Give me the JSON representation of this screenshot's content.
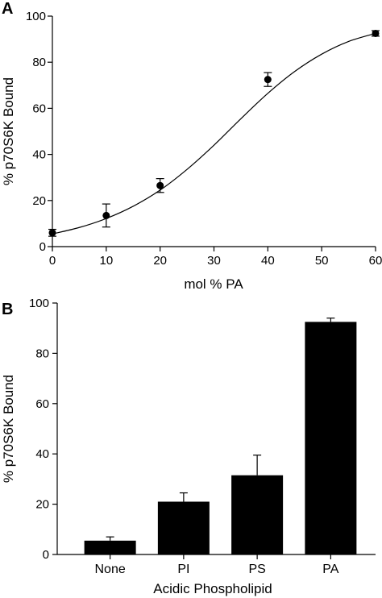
{
  "chart_data": [
    {
      "panel_label": "A",
      "type": "scatter",
      "xlabel": "mol % PA",
      "ylabel": "% p70S6K Bound",
      "xlim": [
        0,
        60
      ],
      "ylim": [
        0,
        100
      ],
      "xticks": [
        0,
        10,
        20,
        30,
        40,
        50,
        60
      ],
      "yticks": [
        0,
        20,
        40,
        60,
        80,
        100
      ],
      "tick_labels_x": [
        "0",
        "10",
        "20",
        "30",
        "40",
        "50",
        "60"
      ],
      "tick_labels_y": [
        "0",
        "20",
        "40",
        "60",
        "80",
        "100"
      ],
      "points": [
        {
          "x": 0,
          "y": 6,
          "err": 1.5
        },
        {
          "x": 10,
          "y": 13.5,
          "err": 5
        },
        {
          "x": 20,
          "y": 26.5,
          "err": 3
        },
        {
          "x": 40,
          "y": 72.5,
          "err": 3
        },
        {
          "x": 60,
          "y": 92.5,
          "err": 1.2
        }
      ],
      "fit_curve": [
        {
          "x": 0,
          "y": 5.5
        },
        {
          "x": 5,
          "y": 8.3
        },
        {
          "x": 10,
          "y": 12.2
        },
        {
          "x": 15,
          "y": 17.5
        },
        {
          "x": 20,
          "y": 24.5
        },
        {
          "x": 25,
          "y": 33.5
        },
        {
          "x": 30,
          "y": 44
        },
        {
          "x": 35,
          "y": 55.5
        },
        {
          "x": 40,
          "y": 66.5
        },
        {
          "x": 45,
          "y": 76
        },
        {
          "x": 50,
          "y": 83.5
        },
        {
          "x": 55,
          "y": 89
        },
        {
          "x": 60,
          "y": 92.5
        }
      ],
      "grid": false
    },
    {
      "panel_label": "B",
      "type": "bar",
      "xlabel": "Acidic Phospholipid",
      "ylabel": "% p70S6K Bound",
      "ylim": [
        0,
        100
      ],
      "yticks": [
        0,
        20,
        40,
        60,
        80,
        100
      ],
      "tick_labels_y": [
        "0",
        "20",
        "40",
        "60",
        "80",
        "100"
      ],
      "categories": [
        "None",
        "PI",
        "PS",
        "PA"
      ],
      "values": [
        5.5,
        21,
        31.5,
        92.5
      ],
      "errors": [
        1.5,
        3.5,
        8,
        1.5
      ],
      "grid": false
    }
  ]
}
